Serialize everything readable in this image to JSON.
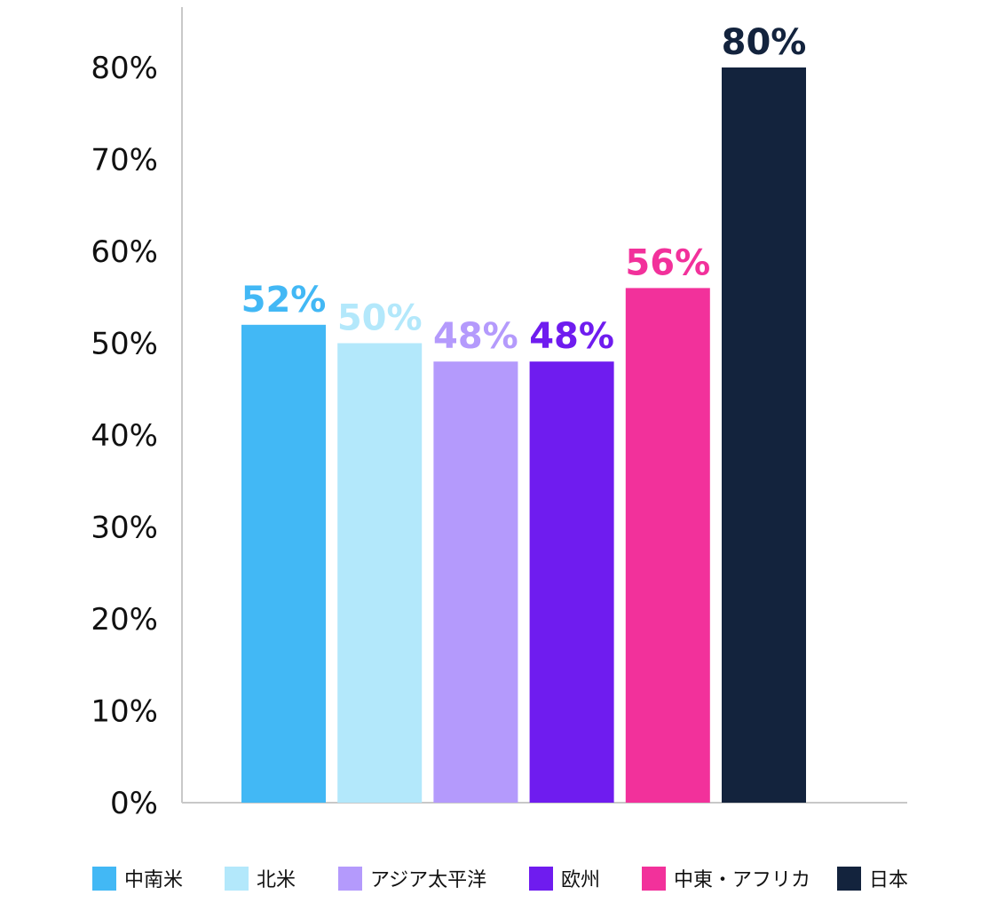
{
  "chart_data": {
    "type": "bar",
    "categories": [
      "中南米",
      "北米",
      "アジア太平洋",
      "欧州",
      "中東・アフリカ",
      "日本"
    ],
    "values": [
      52,
      50,
      48,
      48,
      56,
      80
    ],
    "data_labels": [
      "52%",
      "50%",
      "48%",
      "48%",
      "56%",
      "80%"
    ],
    "colors": [
      "#42b8f5",
      "#b3e8fb",
      "#b49afc",
      "#6f1cef",
      "#f2319b",
      "#13233d"
    ],
    "ylim": [
      0,
      80
    ],
    "yticks": [
      0,
      10,
      20,
      30,
      40,
      50,
      60,
      70,
      80
    ],
    "ytick_labels": [
      "0%",
      "10%",
      "20%",
      "30%",
      "40%",
      "50%",
      "60%",
      "70%",
      "80%"
    ],
    "title": "",
    "xlabel": "",
    "ylabel": "",
    "grid": false,
    "legend": {
      "placement": "bottom",
      "entries": [
        "中南米",
        "北米",
        "アジア太平洋",
        "欧州",
        "中東・アフリカ",
        "日本"
      ]
    }
  }
}
